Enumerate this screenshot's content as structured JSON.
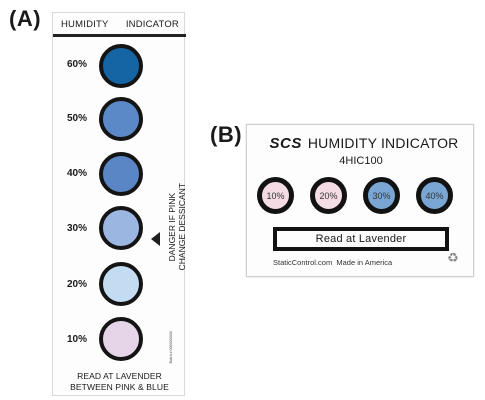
{
  "panel_a": {
    "label": "(A)",
    "header_left": "HUMIDITY",
    "header_right": "INDICATOR",
    "rows": [
      {
        "label": "60%",
        "color": "#1565a4"
      },
      {
        "label": "50%",
        "color": "#5b89c8"
      },
      {
        "label": "40%",
        "color": "#5a86c5"
      },
      {
        "label": "30%",
        "color": "#9bb6e0"
      },
      {
        "label": "20%",
        "color": "#c4dcf1"
      },
      {
        "label": "10%",
        "color": "#e6d5e9"
      }
    ],
    "danger_line1": "DANGER IF PINK",
    "danger_line2": "CHANGE DESSICANT",
    "batch": "Batch # 0000000000",
    "footer_line1": "READ AT LAVENDER",
    "footer_line2": "BETWEEN PINK & BLUE"
  },
  "panel_b": {
    "label": "(B)",
    "logo": "SCS",
    "title": "HUMIDITY INDICATOR",
    "model": "4HIC100",
    "dots": [
      {
        "label": "10%",
        "color": "#f5dce4"
      },
      {
        "label": "20%",
        "color": "#f5dce4"
      },
      {
        "label": "30%",
        "color": "#79a6d3"
      },
      {
        "label": "40%",
        "color": "#79a6d3"
      }
    ],
    "read_label": "Read at Lavender",
    "website": "StaticControl.com",
    "made_in": "Made in America",
    "recycle_icon": "recycle-icon"
  }
}
